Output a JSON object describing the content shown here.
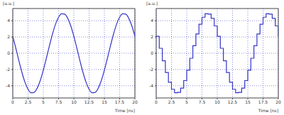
{
  "chart_data": [
    {
      "type": "line",
      "x_label": "Time [ns]",
      "y_label": "[a.u.]",
      "x": [
        0,
        0.5,
        1,
        1.5,
        2,
        2.5,
        3,
        3.5,
        4,
        4.5,
        5,
        5.5,
        6,
        6.5,
        7,
        7.5,
        8,
        8.5,
        9,
        9.5,
        10,
        10.5,
        11,
        11.5,
        12,
        12.5,
        13,
        13.5,
        14,
        14.5,
        15,
        15.5,
        16,
        16.5,
        17,
        17.5,
        18,
        18.5,
        19,
        19.5,
        20
      ],
      "values": [
        2.09,
        0.61,
        -0.92,
        -2.36,
        -3.57,
        -4.43,
        -4.86,
        -4.81,
        -4.29,
        -3.36,
        -2.09,
        -0.61,
        0.92,
        2.36,
        3.57,
        4.43,
        4.86,
        4.81,
        4.29,
        3.36,
        2.09,
        0.61,
        -0.92,
        -2.36,
        -3.57,
        -4.43,
        -4.86,
        -4.81,
        -4.29,
        -3.36,
        -2.09,
        -0.61,
        0.92,
        2.36,
        3.57,
        4.43,
        4.86,
        4.81,
        4.29,
        3.36,
        2.09
      ],
      "color": "#3535c8",
      "line_style": "solid",
      "xlim": [
        0,
        20
      ],
      "xticks": [
        0,
        2.5,
        5,
        7.5,
        10,
        12.5,
        15,
        17.5,
        20
      ],
      "ylim": [
        -5.5,
        5.5
      ],
      "yticks": [
        -4,
        -2,
        0,
        2,
        4
      ],
      "grid": true
    },
    {
      "type": "line",
      "x_label": "Time [ns]",
      "y_label": "[a.u.]",
      "x": [
        0,
        0.5,
        1,
        1.5,
        2,
        2.5,
        3,
        3.5,
        4,
        4.5,
        5,
        5.5,
        6,
        6.5,
        7,
        7.5,
        8,
        8.5,
        9,
        9.5,
        10,
        10.5,
        11,
        11.5,
        12,
        12.5,
        13,
        13.5,
        14,
        14.5,
        15,
        15.5,
        16,
        16.5,
        17,
        17.5,
        18,
        18.5,
        19,
        19.5,
        20
      ],
      "values": [
        2.09,
        0.61,
        -0.92,
        -2.36,
        -3.57,
        -4.43,
        -4.86,
        -4.81,
        -4.29,
        -3.36,
        -2.09,
        -0.61,
        0.92,
        2.36,
        3.57,
        4.43,
        4.86,
        4.81,
        4.29,
        3.36,
        2.09,
        0.61,
        -0.92,
        -2.36,
        -3.57,
        -4.43,
        -4.86,
        -4.81,
        -4.29,
        -3.36,
        -2.09,
        -0.61,
        0.92,
        2.36,
        3.57,
        4.43,
        4.86,
        4.81,
        4.29,
        3.36,
        2.09
      ],
      "color": "#3535c8",
      "line_style": "steps",
      "xlim": [
        0,
        20
      ],
      "xticks": [
        0,
        2.5,
        5,
        7.5,
        10,
        12.5,
        15,
        17.5,
        20
      ],
      "ylim": [
        -5.5,
        5.5
      ],
      "yticks": [
        -4,
        -2,
        0,
        2,
        4
      ],
      "grid": true
    }
  ]
}
